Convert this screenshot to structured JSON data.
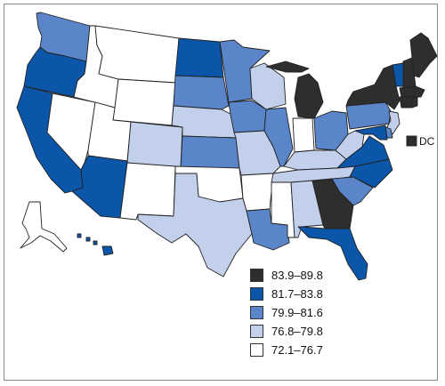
{
  "map": {
    "palette": {
      "c5": "#2e2e2e",
      "c4": "#0b56a8",
      "c3": "#5a86c9",
      "c2": "#c3d0ec",
      "c1": "#ffffff",
      "border": "#222222"
    },
    "legend": [
      {
        "range": "83.9–89.8",
        "color": "#2e2e2e"
      },
      {
        "range": "81.7–83.8",
        "color": "#0b56a8"
      },
      {
        "range": "79.9–81.6",
        "color": "#5a86c9"
      },
      {
        "range": "76.8–79.8",
        "color": "#c3d0ec"
      },
      {
        "range": "72.1–76.7",
        "color": "#ffffff"
      }
    ],
    "dc_label": "DC",
    "dc_class": "c5",
    "state_classes": {
      "WA": "c3",
      "OR": "c4",
      "CA": "c4",
      "NV": "c1",
      "ID": "c1",
      "MT": "c1",
      "WY": "c1",
      "UT": "c1",
      "AZ": "c4",
      "CO": "c2",
      "NM": "c1",
      "ND": "c4",
      "SD": "c3",
      "NE": "c2",
      "KS": "c3",
      "OK": "c1",
      "TX": "c2",
      "MN": "c3",
      "IA": "c3",
      "MO": "c2",
      "AR": "c1",
      "LA": "c3",
      "WI": "c2",
      "IL": "c3",
      "MS": "c1",
      "MI": "c5",
      "IN": "c1",
      "OH": "c3",
      "KY": "c2",
      "TN": "c2",
      "AL": "c2",
      "GA": "c5",
      "FL": "c4",
      "SC": "c3",
      "NC": "c4",
      "VA": "c4",
      "WV": "c2",
      "PA": "c3",
      "NY": "c5",
      "VT": "c4",
      "NH": "c5",
      "ME": "c5",
      "MA": "c5",
      "CT": "c5",
      "RI": "c5",
      "NJ": "c2",
      "DE": "c3",
      "MD": "c4",
      "AK": "c1",
      "HI": "c4"
    }
  }
}
